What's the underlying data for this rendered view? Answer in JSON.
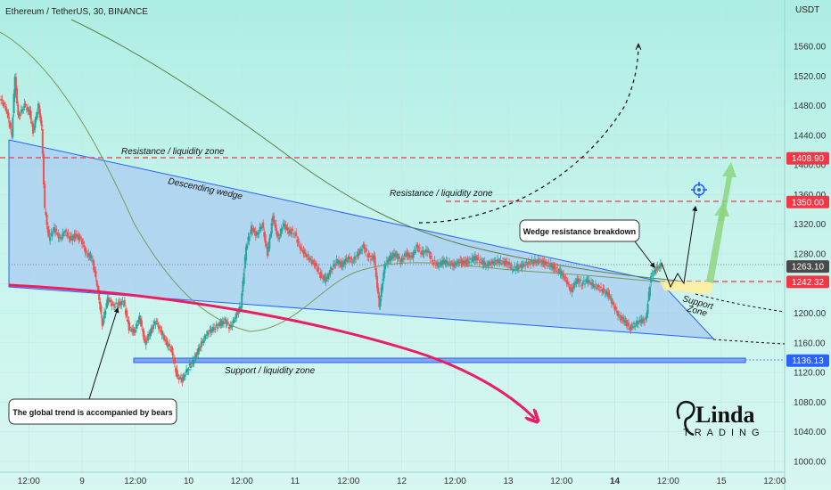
{
  "header": {
    "symbol_line": "Ethereum / TetherUS, 30, BINANCE",
    "currency": "USDT"
  },
  "chart_data": {
    "type": "candlestick",
    "title": "Ethereum / TetherUS, 30, BINANCE",
    "ylabel": "USDT",
    "ylim": [
      990,
      1590
    ],
    "y_ticks": [
      "1560.00",
      "1520.00",
      "1480.00",
      "1440.00",
      "1400.00",
      "1360.00",
      "1320.00",
      "1280.00",
      "1240.00",
      "1200.00",
      "1160.00",
      "1120.00",
      "1080.00",
      "1040.00",
      "1000.00"
    ],
    "y_tick_values": [
      1560,
      1520,
      1480,
      1440,
      1400,
      1360,
      1320,
      1280,
      1240,
      1200,
      1160,
      1120,
      1080,
      1040,
      1000
    ],
    "x_ticks": [
      {
        "label": "12:00",
        "t": 0.5,
        "bold": false
      },
      {
        "label": "9",
        "t": 1,
        "bold": false
      },
      {
        "label": "12:00",
        "t": 1.5,
        "bold": false
      },
      {
        "label": "10",
        "t": 2,
        "bold": false
      },
      {
        "label": "12:00",
        "t": 2.5,
        "bold": false
      },
      {
        "label": "11",
        "t": 3,
        "bold": false
      },
      {
        "label": "12:00",
        "t": 3.5,
        "bold": false
      },
      {
        "label": "12",
        "t": 4,
        "bold": false
      },
      {
        "label": "12:00",
        "t": 4.5,
        "bold": false
      },
      {
        "label": "13",
        "t": 5,
        "bold": false
      },
      {
        "label": "12:00",
        "t": 5.5,
        "bold": false
      },
      {
        "label": "14",
        "t": 6,
        "bold": true
      },
      {
        "label": "12:00",
        "t": 6.5,
        "bold": false
      },
      {
        "label": "15",
        "t": 7,
        "bold": false
      },
      {
        "label": "12:00",
        "t": 7.5,
        "bold": false
      }
    ],
    "price_path": [
      [
        0.0,
        1550
      ],
      [
        0.05,
        1520
      ],
      [
        0.1,
        1480
      ],
      [
        0.15,
        1490
      ],
      [
        0.22,
        1495
      ],
      [
        0.3,
        1475
      ],
      [
        0.35,
        1440
      ],
      [
        0.38,
        1520
      ],
      [
        0.41,
        1465
      ],
      [
        0.47,
        1480
      ],
      [
        0.52,
        1470
      ],
      [
        0.55,
        1445
      ],
      [
        0.6,
        1480
      ],
      [
        0.63,
        1450
      ],
      [
        0.66,
        1340
      ],
      [
        0.7,
        1300
      ],
      [
        0.75,
        1315
      ],
      [
        0.8,
        1300
      ],
      [
        0.85,
        1310
      ],
      [
        0.9,
        1300
      ],
      [
        0.95,
        1305
      ],
      [
        1.0,
        1300
      ],
      [
        1.05,
        1280
      ],
      [
        1.1,
        1275
      ],
      [
        1.15,
        1240
      ],
      [
        1.2,
        1185
      ],
      [
        1.25,
        1220
      ],
      [
        1.3,
        1210
      ],
      [
        1.4,
        1215
      ],
      [
        1.45,
        1180
      ],
      [
        1.5,
        1175
      ],
      [
        1.55,
        1195
      ],
      [
        1.6,
        1160
      ],
      [
        1.65,
        1175
      ],
      [
        1.7,
        1190
      ],
      [
        1.75,
        1175
      ],
      [
        1.8,
        1160
      ],
      [
        1.85,
        1150
      ],
      [
        1.9,
        1115
      ],
      [
        1.95,
        1110
      ],
      [
        2.0,
        1125
      ],
      [
        2.05,
        1135
      ],
      [
        2.1,
        1150
      ],
      [
        2.15,
        1165
      ],
      [
        2.2,
        1175
      ],
      [
        2.3,
        1185
      ],
      [
        2.35,
        1190
      ],
      [
        2.4,
        1180
      ],
      [
        2.45,
        1195
      ],
      [
        2.5,
        1210
      ],
      [
        2.55,
        1290
      ],
      [
        2.6,
        1315
      ],
      [
        2.65,
        1305
      ],
      [
        2.7,
        1320
      ],
      [
        2.75,
        1280
      ],
      [
        2.8,
        1330
      ],
      [
        2.85,
        1300
      ],
      [
        2.9,
        1320
      ],
      [
        2.95,
        1310
      ],
      [
        3.0,
        1310
      ],
      [
        3.05,
        1290
      ],
      [
        3.1,
        1280
      ],
      [
        3.2,
        1265
      ],
      [
        3.25,
        1250
      ],
      [
        3.3,
        1245
      ],
      [
        3.35,
        1260
      ],
      [
        3.4,
        1270
      ],
      [
        3.45,
        1265
      ],
      [
        3.5,
        1275
      ],
      [
        3.55,
        1270
      ],
      [
        3.6,
        1280
      ],
      [
        3.65,
        1290
      ],
      [
        3.7,
        1275
      ],
      [
        3.75,
        1275
      ],
      [
        3.8,
        1210
      ],
      [
        3.85,
        1265
      ],
      [
        3.9,
        1275
      ],
      [
        3.95,
        1280
      ],
      [
        4.0,
        1270
      ],
      [
        4.05,
        1280
      ],
      [
        4.1,
        1275
      ],
      [
        4.15,
        1290
      ],
      [
        4.2,
        1280
      ],
      [
        4.25,
        1285
      ],
      [
        4.3,
        1270
      ],
      [
        4.35,
        1265
      ],
      [
        4.4,
        1270
      ],
      [
        4.5,
        1265
      ],
      [
        4.55,
        1270
      ],
      [
        4.6,
        1268
      ],
      [
        4.7,
        1275
      ],
      [
        4.8,
        1265
      ],
      [
        4.9,
        1270
      ],
      [
        5.0,
        1268
      ],
      [
        5.05,
        1260
      ],
      [
        5.1,
        1262
      ],
      [
        5.2,
        1268
      ],
      [
        5.3,
        1270
      ],
      [
        5.4,
        1265
      ],
      [
        5.5,
        1255
      ],
      [
        5.55,
        1245
      ],
      [
        5.6,
        1230
      ],
      [
        5.65,
        1245
      ],
      [
        5.7,
        1240
      ],
      [
        5.75,
        1245
      ],
      [
        5.8,
        1238
      ],
      [
        5.85,
        1235
      ],
      [
        5.9,
        1230
      ],
      [
        5.95,
        1225
      ],
      [
        6.0,
        1210
      ],
      [
        6.05,
        1195
      ],
      [
        6.1,
        1190
      ],
      [
        6.15,
        1180
      ],
      [
        6.2,
        1185
      ],
      [
        6.25,
        1190
      ],
      [
        6.3,
        1190
      ],
      [
        6.35,
        1250
      ],
      [
        6.4,
        1260
      ],
      [
        6.45,
        1265
      ]
    ],
    "last_price": 1263.1,
    "levels": [
      {
        "name": "resistance-upper",
        "value": 1408.9,
        "label": "1408.90",
        "color": "#f23645"
      },
      {
        "name": "resistance-lower",
        "value": 1350.0,
        "label": "1350.00",
        "color": "#f23645"
      },
      {
        "name": "last-price",
        "value": 1263.1,
        "label": "1263.10",
        "color": "#4a4a4a"
      },
      {
        "name": "support-red",
        "value": 1242.32,
        "label": "1242.32",
        "color": "#f23645"
      },
      {
        "name": "support-blue",
        "value": 1136.13,
        "label": "1136.13",
        "color": "#2962ff"
      }
    ],
    "annotations": {
      "resistance_left": "Resistance / liquidity zone",
      "descending_wedge": "Descending wedge",
      "resistance_mid": "Resistance / liquidity zone",
      "support_zone_label": "Support / liquidity zone",
      "wedge_breakdown": "Wedge resistance breakdown",
      "bears_note": "The global trend is accompanied by bears",
      "support_small_1": "Support",
      "support_small_2": "Zone"
    },
    "colors": {
      "wedge_fill": "#9fc4ee",
      "wedge_stroke": "#2962ff",
      "bull": "#26a69a",
      "bear": "#ef5350",
      "trend_curve": "#e91e63",
      "ma": "#7c9a58",
      "ma_long": "#6f8f54",
      "green_arrow": "#8bd37a"
    }
  },
  "logo": {
    "main": "Linda",
    "sub": "TRADING"
  }
}
